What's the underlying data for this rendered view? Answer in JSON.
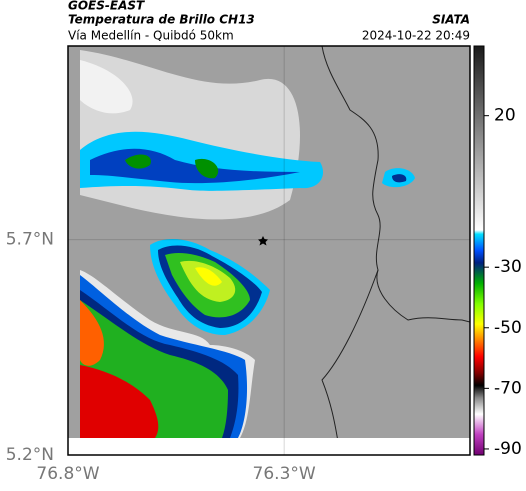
{
  "header": {
    "source": "GOES-EAST",
    "title": "Temperatura de Brillo CH13",
    "agency": "SIATA",
    "subtitle": "Vía Medellín - Quibdó 50km",
    "datetime": "2024-10-22 20:49"
  },
  "map": {
    "xlim": [
      -76.8,
      -75.87
    ],
    "ylim": [
      5.2,
      6.15
    ],
    "xticks": [
      {
        "value": -76.8,
        "label": "76.8°W"
      },
      {
        "value": -76.3,
        "label": "76.3°W"
      }
    ],
    "yticks": [
      {
        "value": 5.2,
        "label": "5.2°N"
      },
      {
        "value": 5.7,
        "label": "5.7°N"
      }
    ],
    "grid": true
  },
  "colorbar": {
    "lim": [
      -92,
      43
    ],
    "ticks": [
      20,
      -30,
      -50,
      -70,
      -90
    ]
  }
}
